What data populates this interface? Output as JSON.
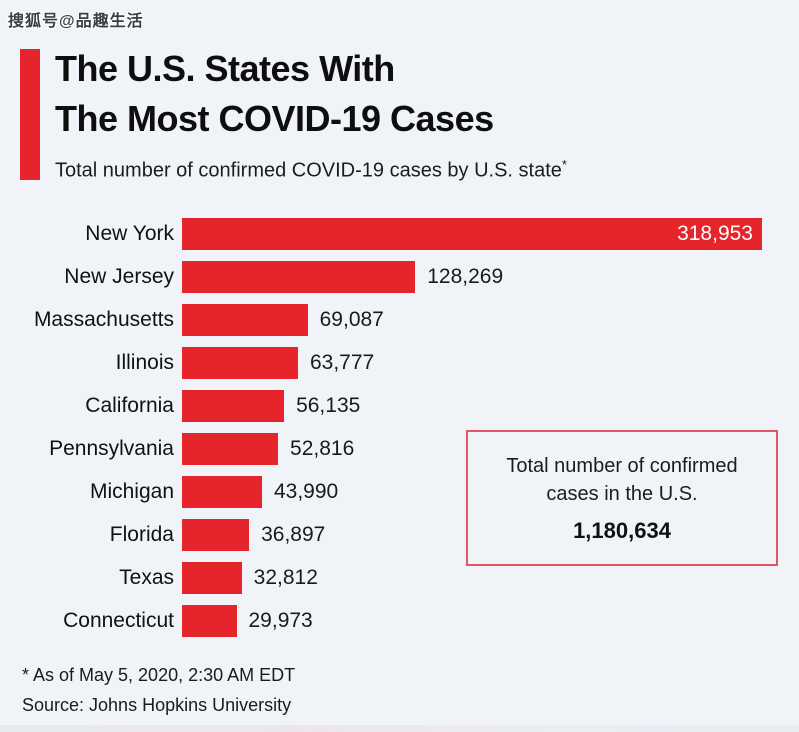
{
  "watermark": "搜狐号@品趣生活",
  "header": {
    "title_line1": "The U.S. States With",
    "title_line2": "The Most COVID-19 Cases",
    "subtitle": "Total number of confirmed COVID-19 cases by U.S. state",
    "footnote_marker": "*"
  },
  "chart_data": {
    "type": "bar",
    "orientation": "horizontal",
    "title": "The U.S. States With The Most COVID-19 Cases",
    "subtitle": "Total number of confirmed COVID-19 cases by U.S. state*",
    "categories": [
      "New York",
      "New Jersey",
      "Massachusetts",
      "Illinois",
      "California",
      "Pennsylvania",
      "Michigan",
      "Florida",
      "Texas",
      "Connecticut"
    ],
    "values": [
      318953,
      128269,
      69087,
      63777,
      56135,
      52816,
      43990,
      36897,
      32812,
      29973
    ],
    "value_labels": [
      "318,953",
      "128,269",
      "69,087",
      "63,777",
      "56,135",
      "52,816",
      "43,990",
      "36,897",
      "32,812",
      "29,973"
    ],
    "xlim": [
      0,
      318953
    ],
    "grid": false,
    "legend": false,
    "bar_color": "#e6242b",
    "value_label_inside_for_index": 0
  },
  "annotation_box": {
    "line1": "Total number of confirmed",
    "line2": "cases in the U.S.",
    "total": "1,180,634"
  },
  "footer": {
    "footnote": "* As of May 5, 2020, 2:30 AM EDT",
    "source": "Source: Johns Hopkins University"
  },
  "colors": {
    "accent_red": "#e6242b",
    "background": "#f0f4f8",
    "box_border": "#e05766"
  }
}
